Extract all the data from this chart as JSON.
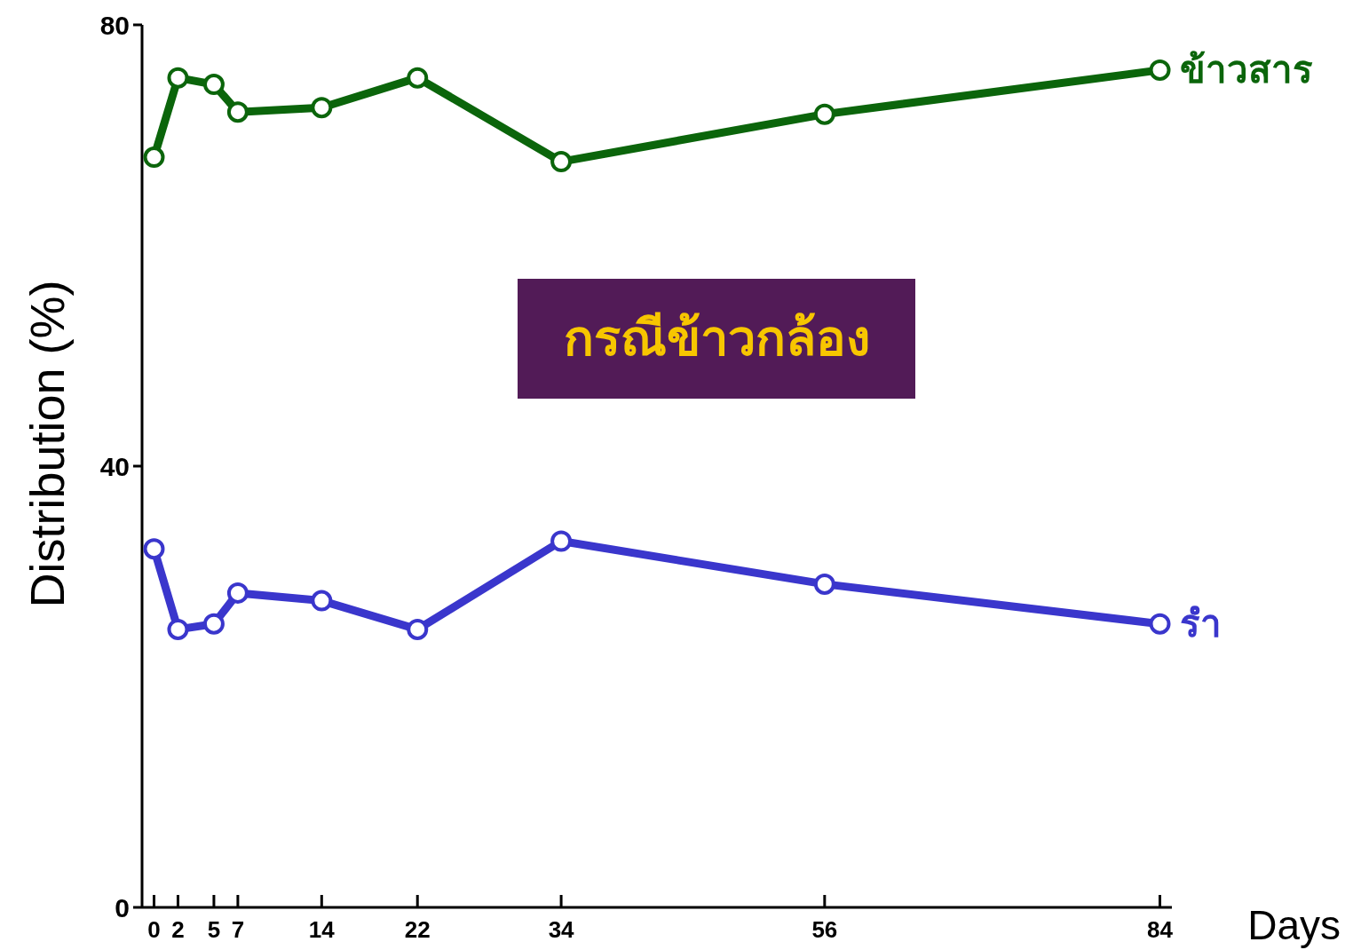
{
  "chart_data": {
    "type": "line",
    "xlabel": "Days",
    "ylabel": "Distribution (%)",
    "x": [
      0,
      2,
      5,
      7,
      14,
      22,
      34,
      56,
      84
    ],
    "series": [
      {
        "name": "ข้าวสาร",
        "color": "#0b650b",
        "values": [
          68,
          75.2,
          74.6,
          72.1,
          72.5,
          75.2,
          67.6,
          71.9,
          75.9
        ]
      },
      {
        "name": "รำ",
        "color": "#3a36cc",
        "values": [
          32.5,
          25.2,
          25.7,
          28.5,
          27.8,
          25.2,
          33.2,
          29.3,
          25.7
        ]
      }
    ],
    "xlim": [
      -1,
      85
    ],
    "ylim": [
      0,
      80
    ],
    "xticks": [
      0,
      2,
      5,
      7,
      14,
      22,
      34,
      56,
      84
    ],
    "yticks": [
      0,
      40,
      80
    ],
    "marker": "circle",
    "line_style": "solid",
    "annotations": [
      "กรณีข้าวกล้อง"
    ]
  }
}
